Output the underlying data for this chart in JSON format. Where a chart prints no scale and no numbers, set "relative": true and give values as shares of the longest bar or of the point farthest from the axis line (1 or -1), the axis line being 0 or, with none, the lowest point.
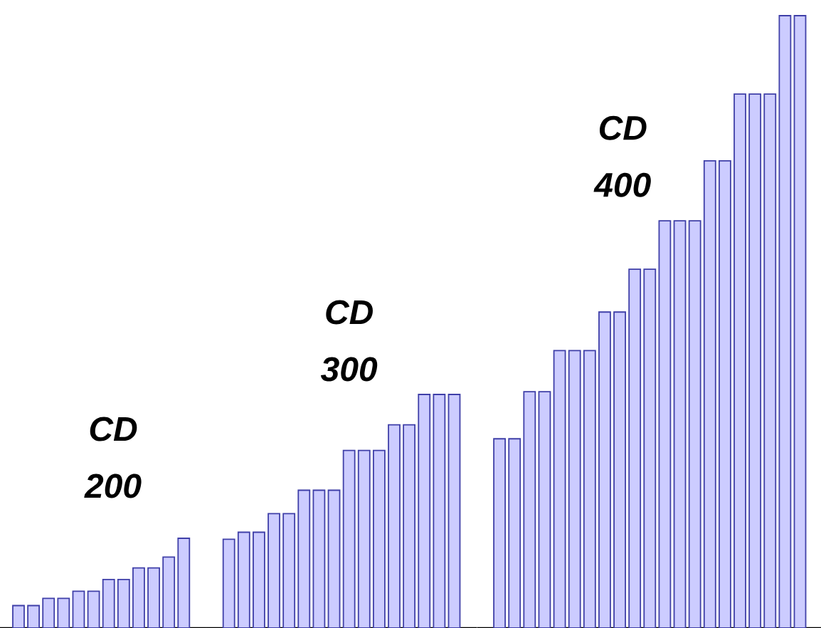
{
  "chart_data": [
    {
      "type": "bar",
      "relative": true,
      "color": "#ccccff",
      "categories": [
        null,
        null,
        null,
        null,
        null,
        null,
        null,
        null,
        null,
        null,
        null,
        null
      ],
      "values": [
        0.25,
        0.25,
        0.33,
        0.33,
        0.41,
        0.41,
        0.54,
        0.54,
        0.67,
        0.67,
        0.79,
        1
      ],
      "annotations": [
        "CD 200"
      ]
    },
    {
      "type": "bar",
      "relative": true,
      "color": "#ccccff",
      "categories": [
        null,
        null,
        null,
        null,
        null,
        null,
        null,
        null,
        null,
        null,
        null,
        null,
        null,
        null,
        null,
        null
      ],
      "values": [
        0.38,
        0.41,
        0.41,
        0.49,
        0.49,
        0.59,
        0.59,
        0.59,
        0.76,
        0.76,
        0.76,
        0.87,
        0.87,
        1,
        1,
        1
      ],
      "annotations": [
        "CD 300"
      ]
    },
    {
      "type": "bar",
      "relative": true,
      "color": "#ccccff",
      "categories": [
        null,
        null,
        null,
        null,
        null,
        null,
        null,
        null,
        null,
        null,
        null,
        null,
        null,
        null,
        null,
        null,
        null,
        null,
        null,
        null,
        null
      ],
      "values": [
        0.309,
        0.309,
        0.386,
        0.386,
        0.453,
        0.453,
        0.453,
        0.516,
        0.516,
        0.586,
        0.586,
        0.665,
        0.665,
        0.665,
        0.763,
        0.763,
        0.872,
        0.872,
        0.872,
        1,
        1
      ],
      "annotations": [
        "CD 400"
      ]
    }
  ]
}
